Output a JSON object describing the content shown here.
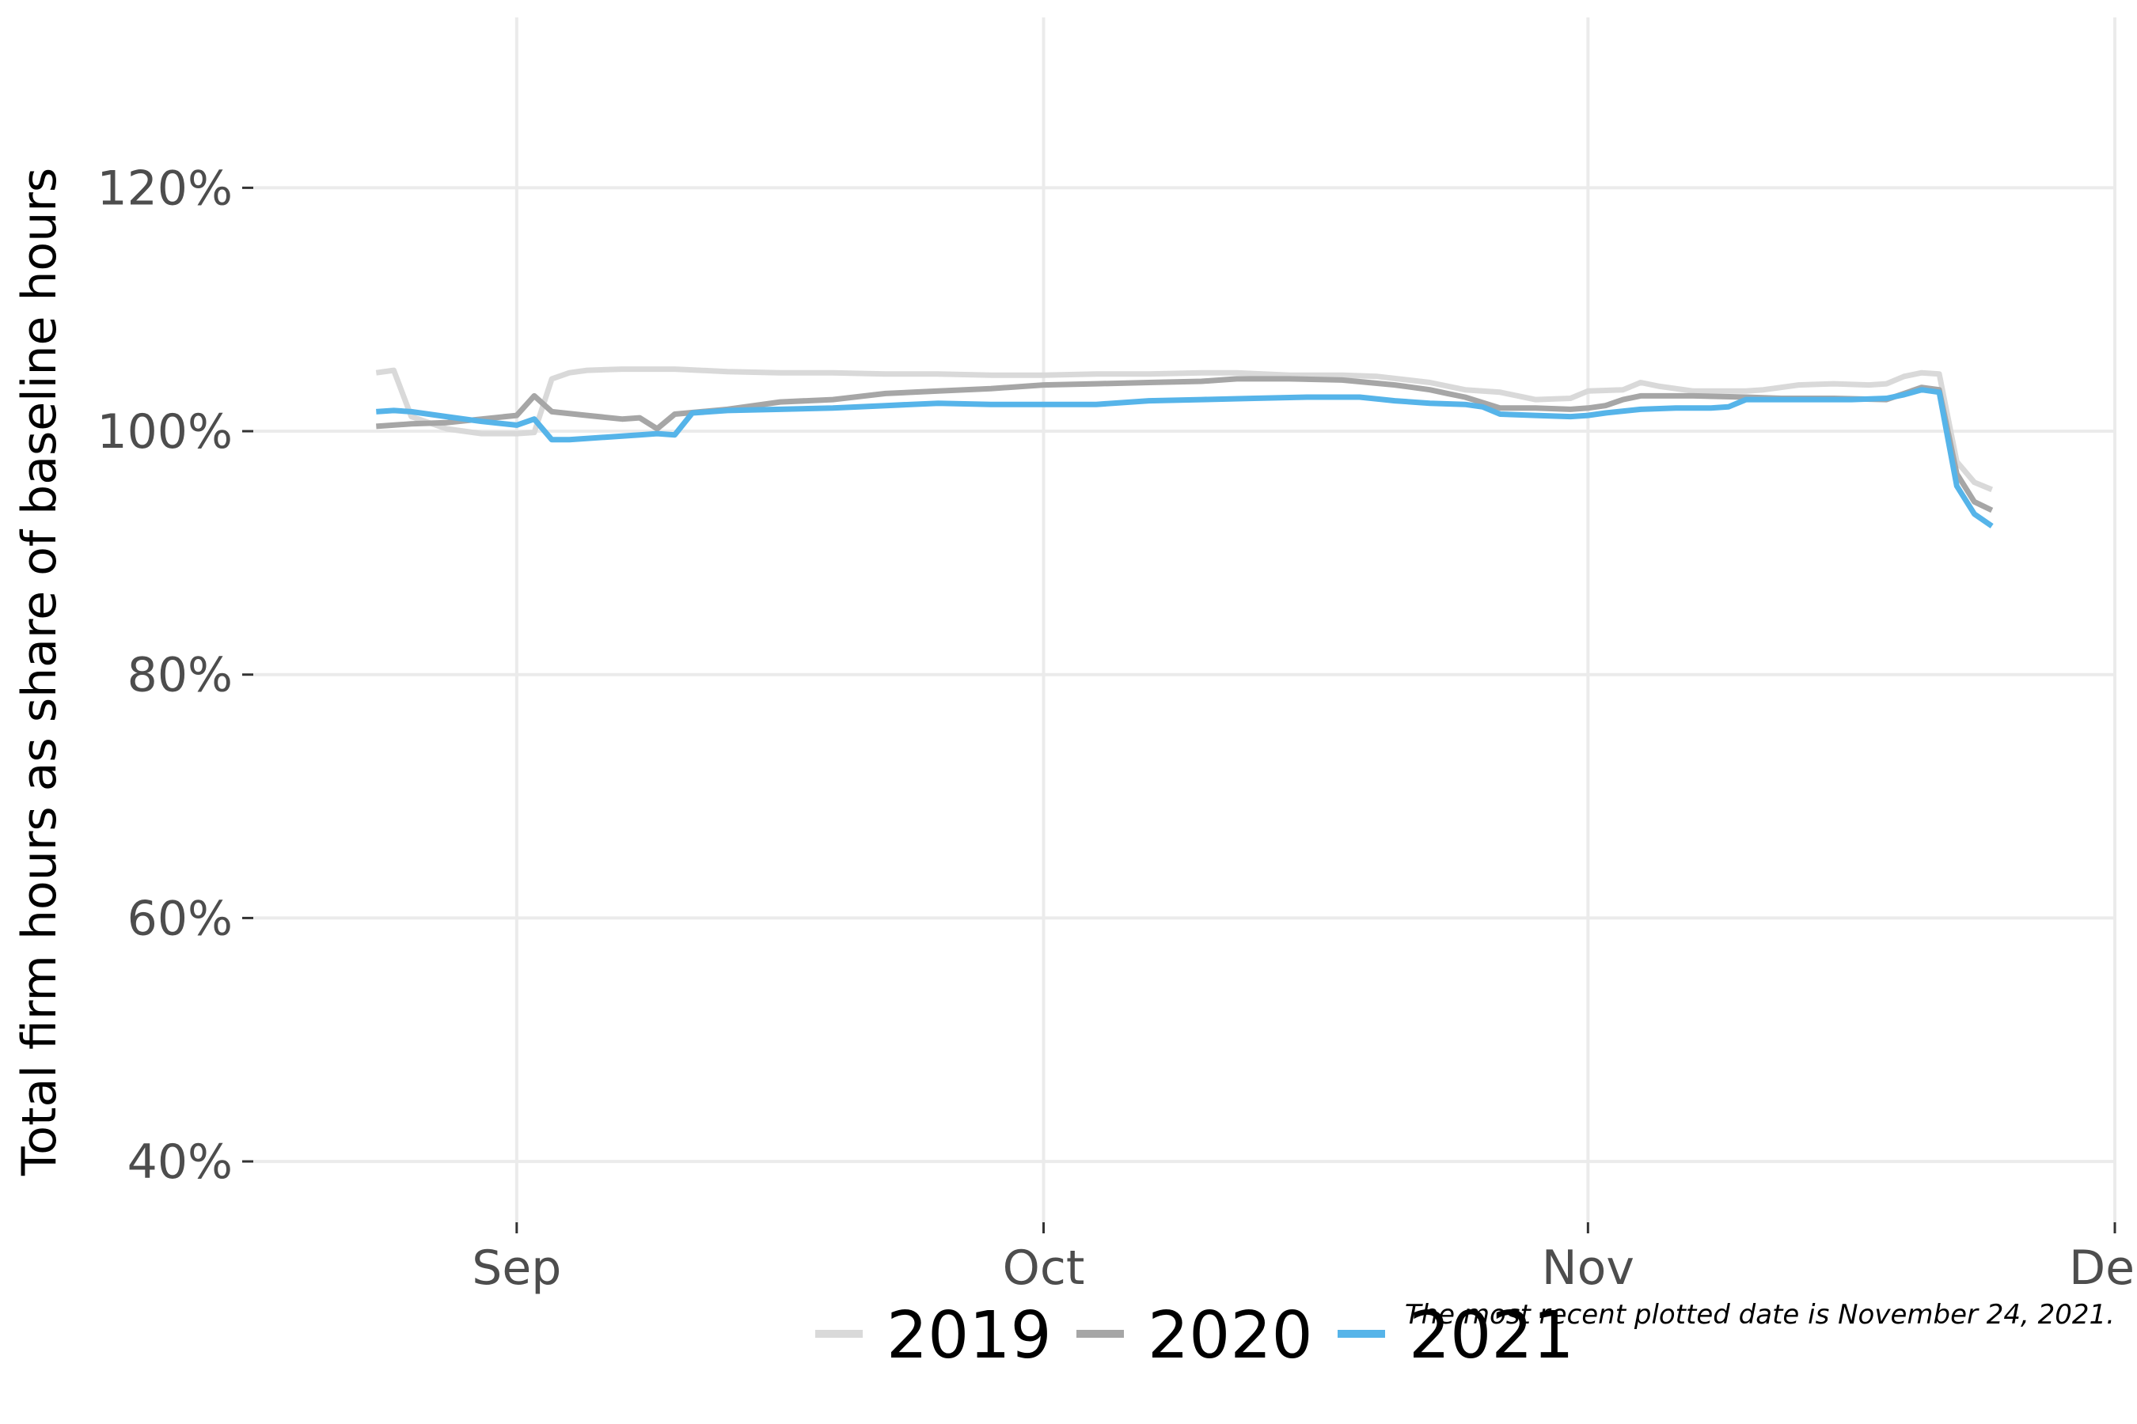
{
  "chart_data": {
    "type": "line",
    "title": "",
    "xlabel": "",
    "ylabel": "Total firm hours as share of baseline hours",
    "caption": "The most recent plotted date is November 24, 2021.",
    "xlim": [
      "2021-08-17",
      "2021-12-01"
    ],
    "ylim": [
      35,
      134
    ],
    "x_ticks": [
      {
        "date": "2021-09-01",
        "label": "Sep"
      },
      {
        "date": "2021-10-01",
        "label": "Oct"
      },
      {
        "date": "2021-11-01",
        "label": "Nov"
      },
      {
        "date": "2021-12-01",
        "label": "Dec"
      }
    ],
    "y_ticks": [
      {
        "value": 40,
        "label": "40%"
      },
      {
        "value": 60,
        "label": "60%"
      },
      {
        "value": 80,
        "label": "80%"
      },
      {
        "value": 100,
        "label": "100%"
      },
      {
        "value": 120,
        "label": "120%"
      }
    ],
    "grid": true,
    "legend_position": "bottom",
    "series": [
      {
        "name": "2019",
        "color": "#d9d9d9",
        "points": [
          [
            "2021-08-24",
            104.8
          ],
          [
            "2021-08-25",
            105.0
          ],
          [
            "2021-08-26",
            101.2
          ],
          [
            "2021-08-28",
            100.2
          ],
          [
            "2021-08-30",
            99.8
          ],
          [
            "2021-09-01",
            99.8
          ],
          [
            "2021-09-02",
            99.9
          ],
          [
            "2021-09-03",
            104.3
          ],
          [
            "2021-09-04",
            104.8
          ],
          [
            "2021-09-05",
            105.0
          ],
          [
            "2021-09-07",
            105.1
          ],
          [
            "2021-09-10",
            105.1
          ],
          [
            "2021-09-13",
            104.9
          ],
          [
            "2021-09-16",
            104.8
          ],
          [
            "2021-09-19",
            104.8
          ],
          [
            "2021-09-22",
            104.7
          ],
          [
            "2021-09-25",
            104.7
          ],
          [
            "2021-09-28",
            104.6
          ],
          [
            "2021-10-01",
            104.6
          ],
          [
            "2021-10-04",
            104.7
          ],
          [
            "2021-10-07",
            104.7
          ],
          [
            "2021-10-10",
            104.8
          ],
          [
            "2021-10-12",
            104.8
          ],
          [
            "2021-10-15",
            104.6
          ],
          [
            "2021-10-18",
            104.6
          ],
          [
            "2021-10-20",
            104.5
          ],
          [
            "2021-10-23",
            104.0
          ],
          [
            "2021-10-25",
            103.4
          ],
          [
            "2021-10-27",
            103.2
          ],
          [
            "2021-10-29",
            102.6
          ],
          [
            "2021-10-31",
            102.7
          ],
          [
            "2021-11-01",
            103.3
          ],
          [
            "2021-11-03",
            103.4
          ],
          [
            "2021-11-04",
            104.0
          ],
          [
            "2021-11-05",
            103.7
          ],
          [
            "2021-11-07",
            103.3
          ],
          [
            "2021-11-10",
            103.3
          ],
          [
            "2021-11-11",
            103.4
          ],
          [
            "2021-11-13",
            103.8
          ],
          [
            "2021-11-15",
            103.9
          ],
          [
            "2021-11-17",
            103.8
          ],
          [
            "2021-11-18",
            103.9
          ],
          [
            "2021-11-19",
            104.5
          ],
          [
            "2021-11-20",
            104.8
          ],
          [
            "2021-11-21",
            104.7
          ],
          [
            "2021-11-22",
            97.5
          ],
          [
            "2021-11-23",
            95.8
          ],
          [
            "2021-11-24",
            95.2
          ]
        ]
      },
      {
        "name": "2020",
        "color": "#a6a6a6",
        "points": [
          [
            "2021-08-24",
            100.4
          ],
          [
            "2021-08-26",
            100.6
          ],
          [
            "2021-08-28",
            100.7
          ],
          [
            "2021-08-30",
            101.0
          ],
          [
            "2021-09-01",
            101.3
          ],
          [
            "2021-09-02",
            102.9
          ],
          [
            "2021-09-03",
            101.6
          ],
          [
            "2021-09-05",
            101.3
          ],
          [
            "2021-09-07",
            101.0
          ],
          [
            "2021-09-08",
            101.1
          ],
          [
            "2021-09-09",
            100.2
          ],
          [
            "2021-09-10",
            101.4
          ],
          [
            "2021-09-13",
            101.8
          ],
          [
            "2021-09-16",
            102.4
          ],
          [
            "2021-09-19",
            102.6
          ],
          [
            "2021-09-22",
            103.1
          ],
          [
            "2021-09-25",
            103.3
          ],
          [
            "2021-09-28",
            103.5
          ],
          [
            "2021-10-01",
            103.8
          ],
          [
            "2021-10-04",
            103.9
          ],
          [
            "2021-10-07",
            104.0
          ],
          [
            "2021-10-10",
            104.1
          ],
          [
            "2021-10-12",
            104.3
          ],
          [
            "2021-10-15",
            104.3
          ],
          [
            "2021-10-18",
            104.2
          ],
          [
            "2021-10-21",
            103.8
          ],
          [
            "2021-10-23",
            103.4
          ],
          [
            "2021-10-24",
            103.1
          ],
          [
            "2021-10-25",
            102.8
          ],
          [
            "2021-10-27",
            101.9
          ],
          [
            "2021-10-29",
            101.9
          ],
          [
            "2021-10-31",
            101.8
          ],
          [
            "2021-11-01",
            101.9
          ],
          [
            "2021-11-02",
            102.1
          ],
          [
            "2021-11-03",
            102.6
          ],
          [
            "2021-11-04",
            102.9
          ],
          [
            "2021-11-07",
            102.9
          ],
          [
            "2021-11-10",
            102.8
          ],
          [
            "2021-11-12",
            102.7
          ],
          [
            "2021-11-15",
            102.7
          ],
          [
            "2021-11-18",
            102.6
          ],
          [
            "2021-11-20",
            103.6
          ],
          [
            "2021-11-21",
            103.4
          ],
          [
            "2021-11-22",
            96.5
          ],
          [
            "2021-11-23",
            94.2
          ],
          [
            "2021-11-24",
            93.5
          ]
        ]
      },
      {
        "name": "2021",
        "color": "#56b4e9",
        "points": [
          [
            "2021-08-24",
            101.6
          ],
          [
            "2021-08-25",
            101.7
          ],
          [
            "2021-08-26",
            101.6
          ],
          [
            "2021-08-28",
            101.2
          ],
          [
            "2021-08-30",
            100.8
          ],
          [
            "2021-09-01",
            100.5
          ],
          [
            "2021-09-02",
            101.0
          ],
          [
            "2021-09-03",
            99.3
          ],
          [
            "2021-09-04",
            99.3
          ],
          [
            "2021-09-06",
            99.5
          ],
          [
            "2021-09-08",
            99.7
          ],
          [
            "2021-09-09",
            99.8
          ],
          [
            "2021-09-10",
            99.7
          ],
          [
            "2021-09-11",
            101.5
          ],
          [
            "2021-09-13",
            101.7
          ],
          [
            "2021-09-16",
            101.8
          ],
          [
            "2021-09-19",
            101.9
          ],
          [
            "2021-09-22",
            102.1
          ],
          [
            "2021-09-25",
            102.3
          ],
          [
            "2021-09-28",
            102.2
          ],
          [
            "2021-10-01",
            102.2
          ],
          [
            "2021-10-04",
            102.2
          ],
          [
            "2021-10-07",
            102.5
          ],
          [
            "2021-10-10",
            102.6
          ],
          [
            "2021-10-13",
            102.7
          ],
          [
            "2021-10-16",
            102.8
          ],
          [
            "2021-10-19",
            102.8
          ],
          [
            "2021-10-21",
            102.5
          ],
          [
            "2021-10-23",
            102.3
          ],
          [
            "2021-10-25",
            102.2
          ],
          [
            "2021-10-26",
            102.0
          ],
          [
            "2021-10-27",
            101.4
          ],
          [
            "2021-10-29",
            101.3
          ],
          [
            "2021-10-31",
            101.2
          ],
          [
            "2021-11-01",
            101.3
          ],
          [
            "2021-11-02",
            101.5
          ],
          [
            "2021-11-04",
            101.8
          ],
          [
            "2021-11-06",
            101.9
          ],
          [
            "2021-11-08",
            101.9
          ],
          [
            "2021-11-09",
            102.0
          ],
          [
            "2021-11-10",
            102.6
          ],
          [
            "2021-11-13",
            102.6
          ],
          [
            "2021-11-16",
            102.6
          ],
          [
            "2021-11-18",
            102.7
          ],
          [
            "2021-11-19",
            103.0
          ],
          [
            "2021-11-20",
            103.4
          ],
          [
            "2021-11-21",
            103.2
          ],
          [
            "2021-11-22",
            95.5
          ],
          [
            "2021-11-23",
            93.2
          ],
          [
            "2021-11-24",
            92.2
          ]
        ]
      }
    ]
  }
}
